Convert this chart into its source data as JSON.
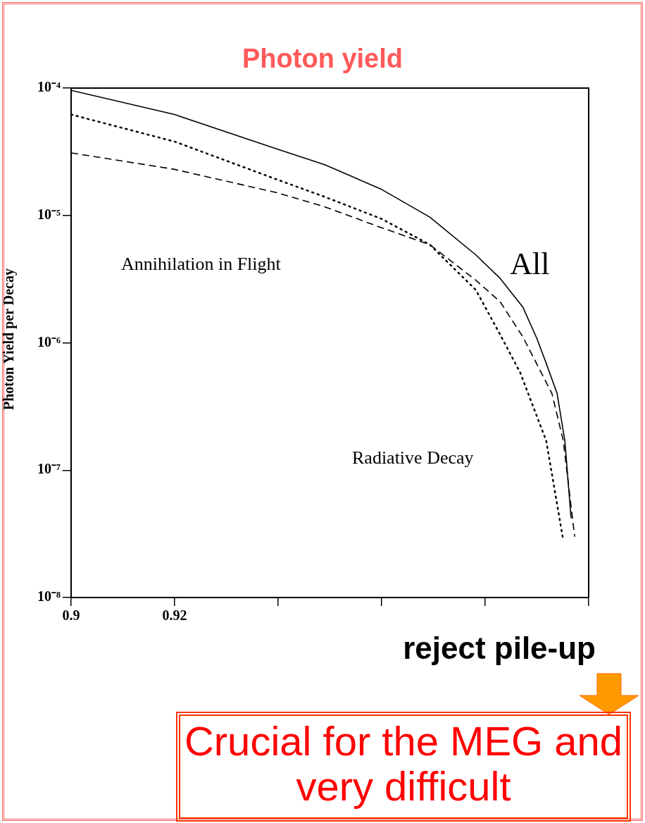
{
  "chart_data": {
    "type": "line",
    "title": "Photon yield",
    "ylabel": "Photon Yield per Decay",
    "log": "y",
    "grid": false,
    "legend": false,
    "marker": "none",
    "xlim": [
      0.9,
      1.0
    ],
    "xticks": [
      0.9,
      {
        "value": 0.92,
        "label": "0.92"
      },
      {
        "value": 0.94,
        "label": null
      },
      {
        "value": 0.96,
        "label": null
      },
      {
        "value": 0.98,
        "label": null
      },
      {
        "value": 1.0,
        "label": null
      }
    ],
    "ylim": [
      1e-08,
      0.0001
    ],
    "yticks": [
      {
        "value": 1e-08,
        "label": "10⁻⁸"
      },
      {
        "value": 1e-07,
        "label": "10⁻⁷"
      },
      {
        "value": 1e-06,
        "label": "10⁻⁶"
      },
      {
        "value": 1e-05,
        "label": "10⁻⁵"
      },
      {
        "value": 0.0001,
        "label": "10⁻⁴"
      }
    ],
    "series": [
      {
        "name": "All",
        "color": "#000000",
        "line_style": "solid",
        "x": [
          0.9,
          0.92,
          0.94,
          0.949,
          0.96,
          0.9693,
          0.9782,
          0.9829,
          0.9873,
          0.99,
          0.9918,
          0.9939,
          0.9954,
          0.9966
        ],
        "values": [
          9.6e-05,
          6.2e-05,
          3.3e-05,
          2.5e-05,
          1.6e-05,
          9.7e-06,
          4.9e-06,
          3.2e-06,
          1.9e-06,
          1.08e-06,
          6.9e-07,
          4e-07,
          1.7e-07,
          4.2e-08
        ]
      },
      {
        "color": "#000000",
        "line_style": "dotted",
        "x": [
          0.9,
          0.92,
          0.94,
          0.949,
          0.96,
          0.9693,
          0.9782,
          0.9829,
          0.9868,
          0.9918,
          0.9951
        ],
        "values": [
          6.2e-05,
          3.8e-05,
          1.9e-05,
          1.4e-05,
          9.4e-06,
          5.9e-06,
          2.6e-06,
          1.16e-06,
          5.8e-07,
          1.7e-07,
          2.8e-08
        ]
      },
      {
        "color": "#000000",
        "line_style": "dashed",
        "x": [
          0.9,
          0.92,
          0.94,
          0.949,
          0.96,
          0.9693,
          0.9782,
          0.9829,
          0.9873,
          0.9929,
          0.9951,
          0.9973
        ],
        "values": [
          3.1e-05,
          2.3e-05,
          1.5e-05,
          1.17e-05,
          8e-06,
          5.9e-06,
          3.1e-06,
          2.1e-06,
          1.11e-06,
          4e-07,
          1.7e-07,
          3e-08
        ]
      }
    ],
    "annotations": [
      "Annihilation in Flight",
      "Radiative Decay",
      "reject pile-up",
      "Crucial for the MEG and very difficult"
    ]
  }
}
